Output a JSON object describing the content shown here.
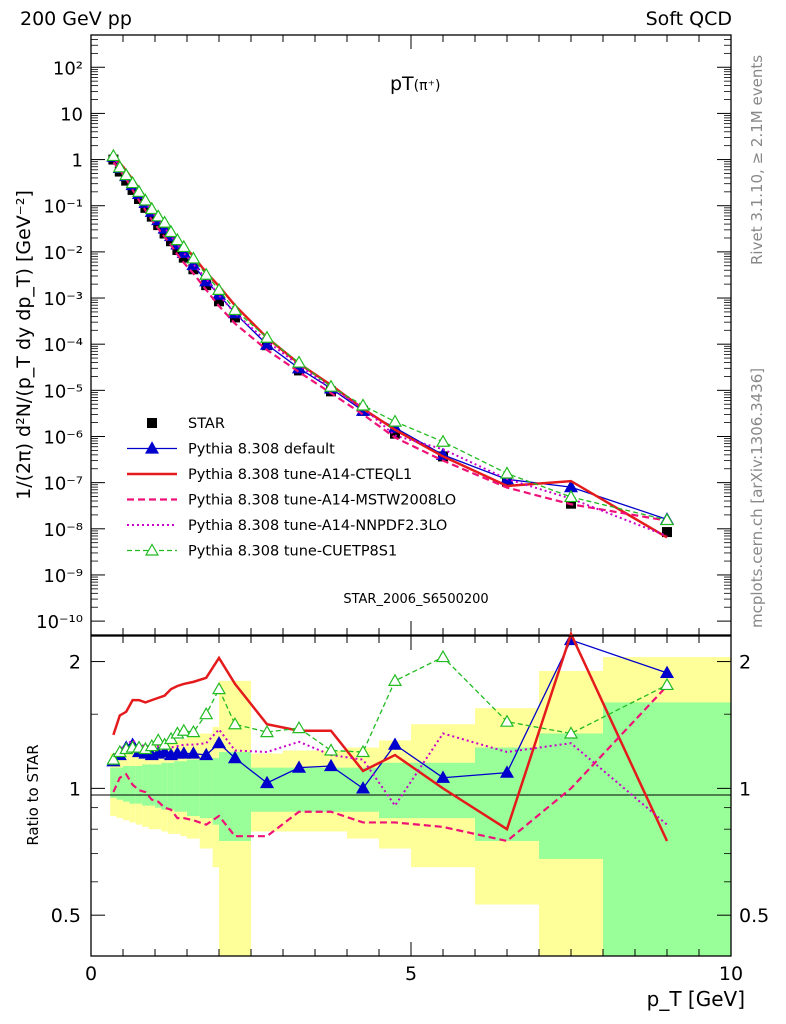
{
  "header": {
    "left": "200 GeV pp",
    "right": "Soft QCD"
  },
  "side_text": {
    "rivet": "Rivet 3.1.10, ≥ 2.1M events",
    "mcplots": "mcplots.cern.ch [arXiv:1306.3436]"
  },
  "watermark": "STAR_2006_S6500200",
  "colors": {
    "star": "#000000",
    "default": "#0000cc",
    "cteql1": "#e41a1c",
    "mstw": "#ee1177",
    "nnpdf": "#cc00cc",
    "cuetp8s1": "#22bb22",
    "band_outer": "#ffff99",
    "band_inner": "#99ff99"
  },
  "chart_data": [
    {
      "type": "scatter",
      "title": "pT(π⁺)",
      "title_main": "pT",
      "title_sub": "(π⁺)",
      "ylabel": "1/(2π) d²N/(p_T dy dp_T) [GeV⁻²]",
      "yscale": "log",
      "xlim": [
        0,
        10
      ],
      "ylim": [
        5e-11,
        500
      ],
      "ytick_labels": [
        "10⁻¹⁰",
        "10⁻⁹",
        "10⁻⁸",
        "10⁻⁷",
        "10⁻⁶",
        "10⁻⁵",
        "10⁻⁴",
        "10⁻³",
        "10⁻²",
        "10⁻¹",
        "1",
        "10",
        "10²"
      ],
      "legend_position": "bottom-left",
      "x": [
        0.35,
        0.45,
        0.55,
        0.65,
        0.75,
        0.85,
        0.95,
        1.05,
        1.15,
        1.25,
        1.35,
        1.45,
        1.6,
        1.8,
        2.0,
        2.25,
        2.75,
        3.25,
        3.75,
        4.25,
        4.75,
        5.5,
        6.5,
        7.5,
        9.0
      ],
      "series": [
        {
          "name": "STAR",
          "values": [
            1.0,
            0.55,
            0.35,
            0.22,
            0.14,
            0.09,
            0.058,
            0.038,
            0.025,
            0.017,
            0.011,
            0.0075,
            0.0042,
            0.0019,
            0.00085,
            0.00038,
            9.5e-05,
            2.7e-05,
            9.5e-06,
            3.6e-06,
            1.15e-06,
            3.7e-07,
            1.05e-07,
            3.5e-08,
            8.5e-09
          ]
        },
        {
          "name": "Pythia 8.308 default",
          "values": [
            1.16,
            0.66,
            0.44,
            0.28,
            0.18,
            0.115,
            0.074,
            0.049,
            0.032,
            0.022,
            0.0145,
            0.0095,
            0.0052,
            0.0023,
            0.00118,
            0.00047,
            9.8e-05,
            3e-05,
            1.1e-05,
            3.6e-06,
            1.55e-06,
            4e-07,
            1.18e-07,
            8e-08,
            1.6e-08
          ]
        },
        {
          "name": "Pythia 8.308 tune-A14-CTEQL1",
          "values": [
            1.14,
            0.85,
            0.57,
            0.37,
            0.24,
            0.15,
            0.1,
            0.064,
            0.043,
            0.03,
            0.02,
            0.014,
            0.0079,
            0.0036,
            0.0018,
            0.00069,
            0.000138,
            3.8e-05,
            1.3e-05,
            4e-06,
            1.4e-06,
            3.7e-07,
            8.5e-08,
            1.08e-07,
            6.5e-09
          ]
        },
        {
          "name": "Pythia 8.308 tune-A14-MSTW2008LO",
          "values": [
            0.87,
            0.6,
            0.38,
            0.22,
            0.13,
            0.08,
            0.049,
            0.032,
            0.021,
            0.014,
            0.0088,
            0.0058,
            0.0034,
            0.0015,
            0.00067,
            0.00028,
            7.5e-05,
            2.5e-05,
            8.7e-06,
            3e-06,
            9.5e-07,
            3e-07,
            7.8e-08,
            3.4e-08,
            1.5e-08
          ]
        },
        {
          "name": "Pythia 8.308 tune-A14-NNPDF2.3LO",
          "values": [
            1.15,
            0.67,
            0.45,
            0.3,
            0.19,
            0.12,
            0.076,
            0.05,
            0.033,
            0.022,
            0.0143,
            0.0095,
            0.0054,
            0.0026,
            0.00114,
            0.00047,
            0.000115,
            3.5e-05,
            1.12e-05,
            4.2e-06,
            1.05e-06,
            5.3e-07,
            1.2e-07,
            4.5e-08,
            7e-09
          ]
        },
        {
          "name": "Pythia 8.308 tune-CUETP8S1",
          "values": [
            1.2,
            0.68,
            0.46,
            0.31,
            0.2,
            0.13,
            0.085,
            0.059,
            0.043,
            0.027,
            0.018,
            0.0128,
            0.0072,
            0.0032,
            0.0015,
            0.00055,
            0.000138,
            4e-05,
            1.2e-05,
            4.7e-06,
            2.1e-06,
            7.7e-07,
            1.58e-07,
            4.9e-08,
            1.55e-08
          ]
        }
      ]
    },
    {
      "type": "line",
      "ylabel": "Ratio to STAR",
      "xlabel": "p_T [GeV]",
      "yscale": "log",
      "xlim": [
        0,
        10
      ],
      "ylim": [
        0.4,
        2.3
      ],
      "xtick_labels": [
        "0",
        "5",
        "10"
      ],
      "ytick_labels": [
        "0.5",
        "1",
        "2"
      ],
      "bands": {
        "edges": [
          0.3,
          0.4,
          0.5,
          0.6,
          0.7,
          0.8,
          0.9,
          1.0,
          1.1,
          1.2,
          1.3,
          1.4,
          1.5,
          1.7,
          1.9,
          2.0,
          2.5,
          3.0,
          3.5,
          4.0,
          4.5,
          5.0,
          6.0,
          7.0,
          8.0,
          10.0
        ],
        "inner": [
          [
            0.95,
            1.12
          ],
          [
            0.94,
            1.12
          ],
          [
            0.93,
            1.13
          ],
          [
            0.92,
            1.13
          ],
          [
            0.92,
            1.13
          ],
          [
            0.91,
            1.14
          ],
          [
            0.91,
            1.14
          ],
          [
            0.9,
            1.14
          ],
          [
            0.89,
            1.15
          ],
          [
            0.89,
            1.15
          ],
          [
            0.88,
            1.16
          ],
          [
            0.88,
            1.16
          ],
          [
            0.86,
            1.17
          ],
          [
            0.85,
            1.18
          ],
          [
            0.82,
            1.18
          ],
          [
            0.75,
            1.22
          ],
          [
            0.88,
            1.12
          ],
          [
            0.88,
            1.12
          ],
          [
            0.88,
            1.12
          ],
          [
            0.88,
            1.12
          ],
          [
            0.85,
            1.15
          ],
          [
            0.85,
            1.15
          ],
          [
            0.75,
            1.25
          ],
          [
            0.68,
            1.35
          ],
          [
            0.35,
            1.6
          ]
        ],
        "outer": [
          [
            0.86,
            1.21
          ],
          [
            0.85,
            1.22
          ],
          [
            0.84,
            1.23
          ],
          [
            0.83,
            1.24
          ],
          [
            0.82,
            1.25
          ],
          [
            0.81,
            1.26
          ],
          [
            0.8,
            1.27
          ],
          [
            0.8,
            1.27
          ],
          [
            0.79,
            1.28
          ],
          [
            0.78,
            1.29
          ],
          [
            0.78,
            1.3
          ],
          [
            0.77,
            1.31
          ],
          [
            0.76,
            1.33
          ],
          [
            0.72,
            1.35
          ],
          [
            0.65,
            1.4
          ],
          [
            0.37,
            1.8
          ],
          [
            0.79,
            1.21
          ],
          [
            0.79,
            1.23
          ],
          [
            0.79,
            1.23
          ],
          [
            0.76,
            1.25
          ],
          [
            0.72,
            1.3
          ],
          [
            0.65,
            1.42
          ],
          [
            0.53,
            1.55
          ],
          [
            0.4,
            1.9
          ],
          [
            0.35,
            2.05
          ]
        ]
      },
      "x": [
        0.35,
        0.45,
        0.55,
        0.65,
        0.75,
        0.85,
        0.95,
        1.05,
        1.15,
        1.25,
        1.35,
        1.45,
        1.6,
        1.8,
        2.0,
        2.25,
        2.75,
        3.25,
        3.75,
        4.25,
        4.75,
        5.5,
        6.5,
        7.5,
        9.0
      ],
      "series": [
        {
          "name": "Pythia 8.308 default",
          "values": [
            1.16,
            1.2,
            1.25,
            1.27,
            1.22,
            1.21,
            1.2,
            1.21,
            1.22,
            1.2,
            1.21,
            1.21,
            1.21,
            1.2,
            1.28,
            1.18,
            1.03,
            1.12,
            1.13,
            1.0,
            1.27,
            1.06,
            1.09,
            2.25,
            1.88
          ]
        },
        {
          "name": "Pythia 8.308 tune-A14-CTEQL1",
          "values": [
            1.34,
            1.49,
            1.52,
            1.62,
            1.62,
            1.6,
            1.62,
            1.64,
            1.66,
            1.72,
            1.75,
            1.77,
            1.79,
            1.83,
            2.04,
            1.77,
            1.42,
            1.37,
            1.37,
            1.1,
            1.2,
            1.0,
            0.8,
            2.7,
            0.75
          ]
        },
        {
          "name": "Pythia 8.308 tune-A14-MSTW2008LO",
          "values": [
            0.98,
            1.06,
            1.08,
            1.02,
            0.99,
            0.98,
            0.94,
            0.93,
            0.9,
            0.89,
            0.85,
            0.85,
            0.84,
            0.82,
            0.86,
            0.77,
            0.77,
            0.88,
            0.88,
            0.83,
            0.83,
            0.81,
            0.75,
            1.0,
            1.75
          ]
        },
        {
          "name": "Pythia 8.308 tune-A14-NNPDF2.3LO",
          "values": [
            1.2,
            1.24,
            1.27,
            1.3,
            1.27,
            1.26,
            1.26,
            1.26,
            1.26,
            1.25,
            1.26,
            1.27,
            1.27,
            1.28,
            1.38,
            1.23,
            1.22,
            1.29,
            1.2,
            1.17,
            0.91,
            1.35,
            1.22,
            1.28,
            0.82
          ]
        },
        {
          "name": "Pythia 8.308 tune-CUETP8S1",
          "values": [
            1.17,
            1.22,
            1.24,
            1.25,
            1.25,
            1.24,
            1.26,
            1.3,
            1.27,
            1.31,
            1.35,
            1.37,
            1.36,
            1.5,
            1.72,
            1.42,
            1.36,
            1.39,
            1.23,
            1.22,
            1.8,
            2.05,
            1.44,
            1.35,
            1.76
          ]
        }
      ]
    }
  ]
}
